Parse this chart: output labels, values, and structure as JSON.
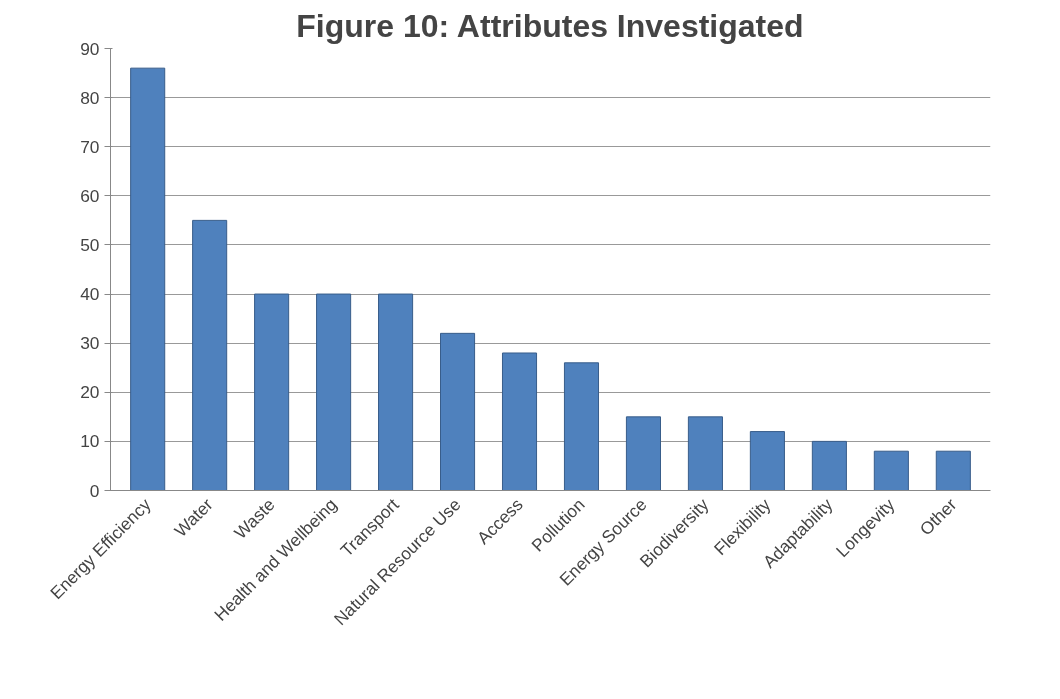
{
  "chart_data": {
    "type": "bar",
    "title": "Figure 10: Attributes Investigated",
    "categories": [
      "Energy Efficiency",
      "Water",
      "Waste",
      "Health and Wellbeing",
      "Transport",
      "Natural Resource Use",
      "Access",
      "Pollution",
      "Energy Source",
      "Biodiversity",
      "Flexibility",
      "Adaptability",
      "Longevity",
      "Other"
    ],
    "values": [
      86,
      55,
      40,
      40,
      40,
      32,
      28,
      26,
      15,
      15,
      12,
      10,
      8,
      8
    ],
    "color": "#4f81bd",
    "ylim": [
      0,
      90
    ],
    "yticks": [
      0,
      10,
      20,
      30,
      40,
      50,
      60,
      70,
      80,
      90
    ],
    "grid": "y"
  }
}
